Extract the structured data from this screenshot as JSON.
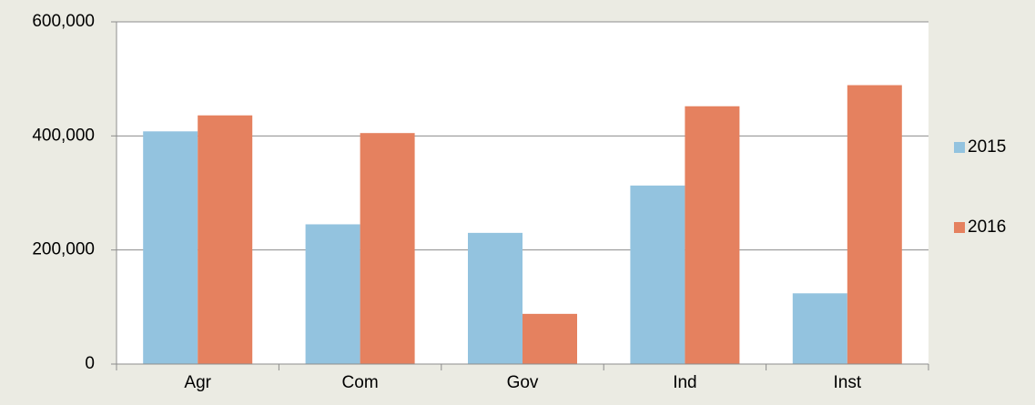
{
  "chart_data": {
    "type": "bar",
    "categories": [
      "Agr",
      "Com",
      "Gov",
      "Ind",
      "Inst"
    ],
    "series": [
      {
        "name": "2015",
        "color": "#93c3df",
        "values": [
          408000,
          245000,
          230000,
          313000,
          124000
        ]
      },
      {
        "name": "2016",
        "color": "#e5815f",
        "values": [
          436000,
          405000,
          88000,
          452000,
          489000
        ]
      }
    ],
    "ylim": [
      0,
      600000
    ],
    "yticks": [
      0,
      {
        "value": 200000,
        "label": "200,000"
      },
      {
        "value": 400000,
        "label": "400,000"
      },
      {
        "value": 600000,
        "label": "600,000"
      }
    ],
    "grid": true,
    "legend": "right"
  }
}
